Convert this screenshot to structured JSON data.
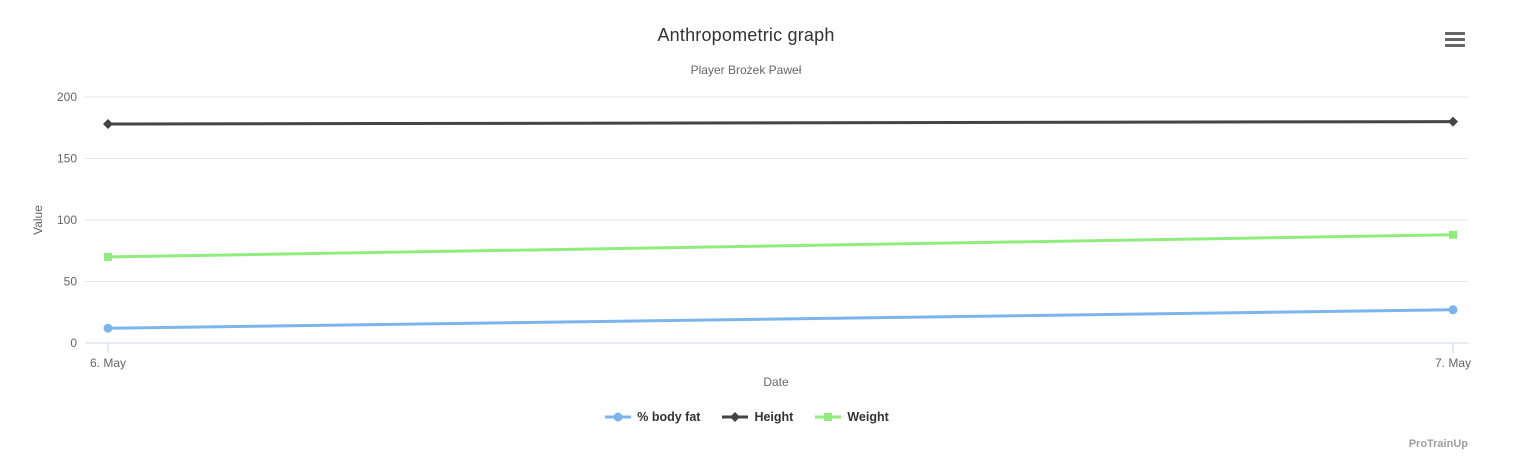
{
  "watermark": "ProTrainUp",
  "icons": {
    "export_menu": "hamburger-icon"
  },
  "chart_data": {
    "type": "line",
    "title": "Anthropometric graph",
    "subtitle": "Player Brożek Paweł",
    "xlabel": "Date",
    "ylabel": "Value",
    "categories": [
      "6. May",
      "7. May"
    ],
    "series": [
      {
        "name": "% body fat",
        "color": "#7cb5ec",
        "marker": "circle",
        "values": [
          12,
          27
        ]
      },
      {
        "name": "Height",
        "color": "#434348",
        "marker": "diamond",
        "values": [
          178,
          180
        ]
      },
      {
        "name": "Weight",
        "color": "#90ed7d",
        "marker": "square",
        "values": [
          70,
          88
        ]
      }
    ],
    "ylim": [
      0,
      200
    ],
    "yticks": [
      0,
      50,
      100,
      150,
      200
    ],
    "grid": true,
    "legend_position": "bottom",
    "colors": {
      "grid": "#e6e6e6",
      "axis_line": "#ccd6eb",
      "axis_text": "#666666",
      "title_text": "#333333",
      "legend_text": "#333333"
    }
  }
}
